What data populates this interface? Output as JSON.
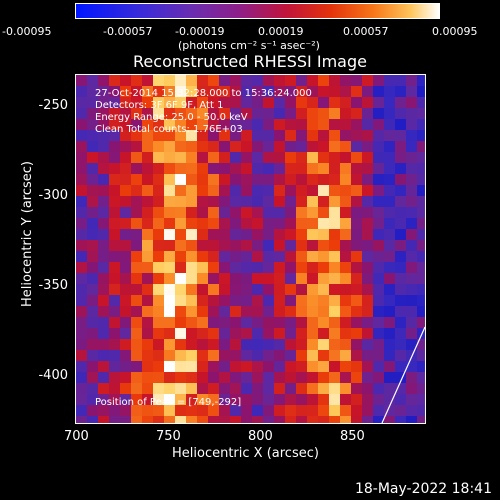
{
  "chart_data": {
    "type": "heatmap",
    "title": "Reconstructed RHESSI Image",
    "xlabel": "Heliocentric X (arcsec)",
    "ylabel": "Heliocentric Y (arcsec)",
    "xlim": [
      700,
      890
    ],
    "ylim": [
      -425,
      -235
    ],
    "x_ticks": [
      "700",
      "750",
      "800",
      "850"
    ],
    "y_ticks": [
      "-250",
      "-300",
      "-350",
      "-400"
    ],
    "colorbar": {
      "range": [
        -0.00095,
        0.00095
      ],
      "tick_labels": [
        "-0.00095",
        "-0.00057",
        "-0.00019",
        "0.00019",
        "0.00057",
        "0.00095"
      ],
      "unit_label": "(photons cm⁻² s⁻¹ asec⁻²)"
    },
    "annotations": {
      "time": "27-Oct-2014 15:32:28.000 to 15:36:24.000",
      "detectors": "Detectors: 3F 6F 9F, Att 1",
      "energy": "Energy Range: 25.0 - 50.0 keV",
      "algorithm": "Clean    Total counts: 1.76E+03",
      "peak": "Position of Peak = [749,-292]"
    },
    "peak_position": [
      749,
      -292
    ]
  },
  "footer": {
    "date": "18-May-2022 18:41"
  },
  "colors": {
    "background": "#000000",
    "foreground": "#ffffff",
    "low": "#0016ff",
    "mid": "#6a2db0",
    "high": "#ffffff"
  }
}
